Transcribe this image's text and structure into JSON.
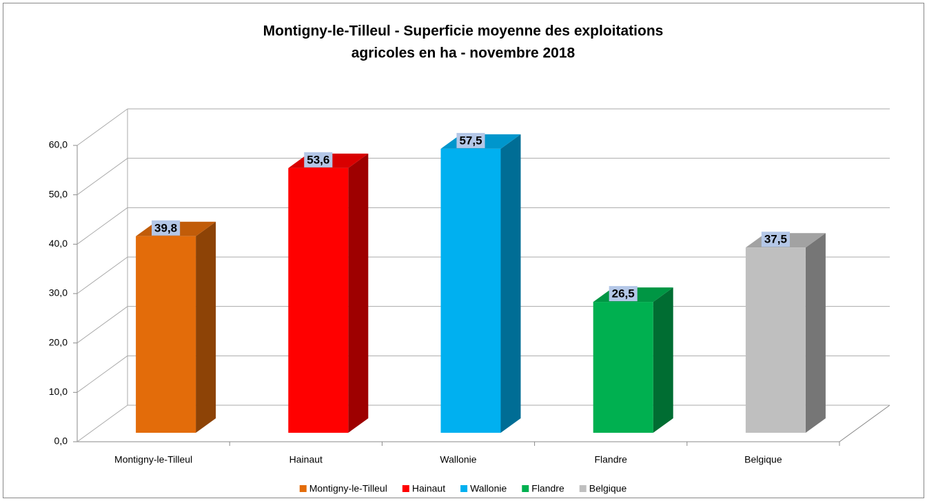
{
  "chart_data": {
    "type": "bar3d",
    "title": [
      "Montigny-le-Tilleul - Superficie moyenne des exploitations",
      "agricoles en ha - novembre 2018"
    ],
    "categories": [
      "Montigny-le-Tilleul",
      "Hainaut",
      "Wallonie",
      "Flandre",
      "Belgique"
    ],
    "values": [
      39.8,
      53.6,
      57.5,
      26.5,
      37.5
    ],
    "value_labels": [
      "39,8",
      "53,6",
      "57,5",
      "26,5",
      "37,5"
    ],
    "colors": [
      "#e36c0a",
      "#ff0000",
      "#00b0f0",
      "#00b050",
      "#bfbfbf"
    ],
    "ylim": [
      0,
      60
    ],
    "yticks": [
      {
        "value": 0,
        "label": "0,0"
      },
      {
        "value": 10,
        "label": "10,0"
      },
      {
        "value": 20,
        "label": "20,0"
      },
      {
        "value": 30,
        "label": "30,0"
      },
      {
        "value": 40,
        "label": "40,0"
      },
      {
        "value": 50,
        "label": "50,0"
      },
      {
        "value": 60,
        "label": "60,0"
      }
    ],
    "grid": true,
    "legend": "bottom"
  }
}
